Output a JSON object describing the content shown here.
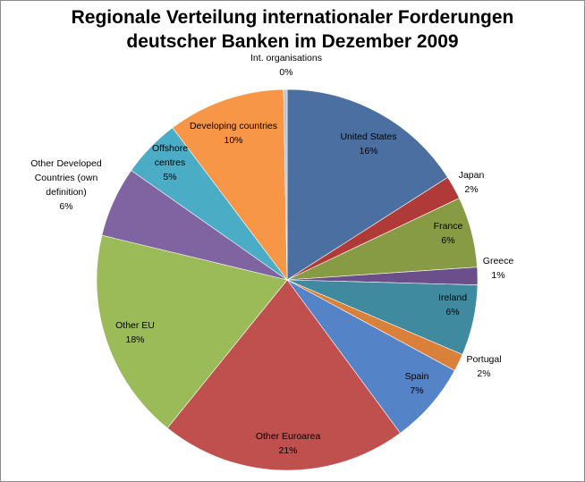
{
  "chart_data": {
    "type": "pie",
    "title_lines": [
      "Regionale Verteilung internationaler Forderungen",
      "deutscher Banken im Dezember 2009"
    ],
    "slices": [
      {
        "label": [
          "United States"
        ],
        "value": 16,
        "pct_label": "16%",
        "color": "#4a6fa0"
      },
      {
        "label": [
          "Japan"
        ],
        "value": 2,
        "pct_label": "2%",
        "color": "#b03a37"
      },
      {
        "label": [
          "France"
        ],
        "value": 6,
        "pct_label": "6%",
        "color": "#879b45"
      },
      {
        "label": [
          "Greece"
        ],
        "value": 1.5,
        "pct_label": "1%",
        "color": "#6a4f8a"
      },
      {
        "label": [
          "Ireland"
        ],
        "value": 6,
        "pct_label": "6%",
        "color": "#3f8a9e"
      },
      {
        "label": [
          "Portugal"
        ],
        "value": 1.5,
        "pct_label": "2%",
        "color": "#d9803a"
      },
      {
        "label": [
          "Spain"
        ],
        "value": 7,
        "pct_label": "7%",
        "color": "#5583c8"
      },
      {
        "label": [
          "Other Euroarea"
        ],
        "value": 21,
        "pct_label": "21%",
        "color": "#c0504d"
      },
      {
        "label": [
          "Other EU"
        ],
        "value": 18,
        "pct_label": "18%",
        "color": "#9bbb59"
      },
      {
        "label": [
          "Other Developed",
          "Countries (own",
          "definition)"
        ],
        "value": 6,
        "pct_label": "6%",
        "color": "#8064a2"
      },
      {
        "label": [
          "Offshore",
          "centres"
        ],
        "value": 5,
        "pct_label": "5%",
        "color": "#4bacc6"
      },
      {
        "label": [
          "Developing countries"
        ],
        "value": 10,
        "pct_label": "10%",
        "color": "#f79646"
      },
      {
        "label": [
          "Int. organisations"
        ],
        "value": 0.3,
        "pct_label": "0%",
        "color": "#b7c3d8"
      }
    ]
  }
}
